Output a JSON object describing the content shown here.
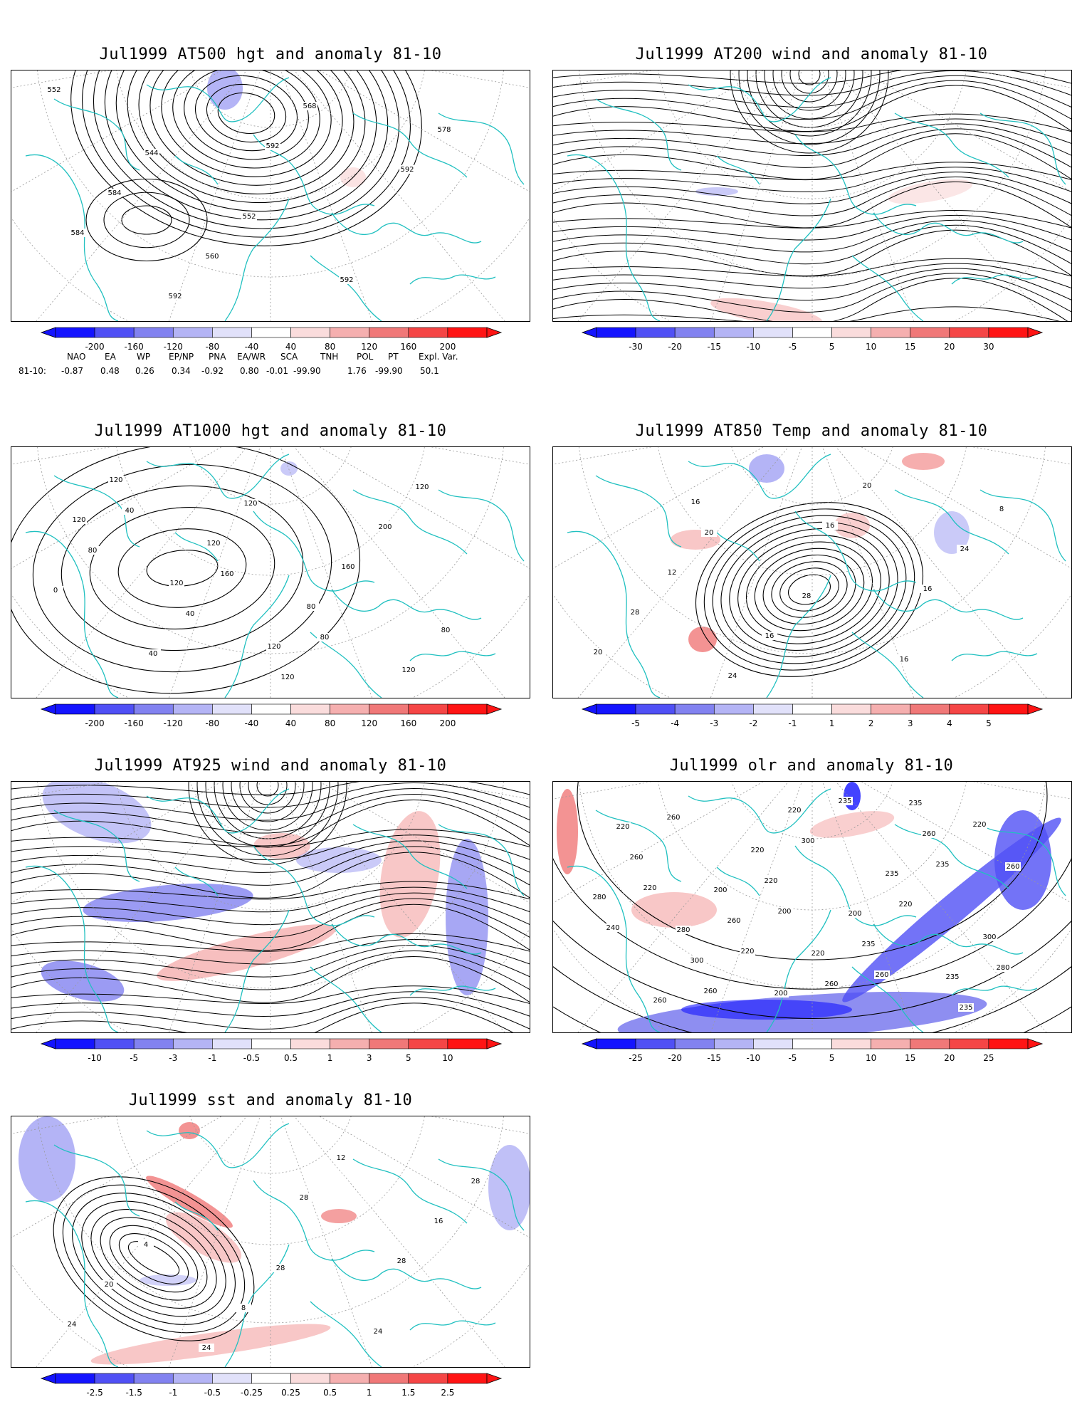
{
  "panels": [
    {
      "id": "p500",
      "title": "Jul1999 AT500 hgt and anomaly 81-10",
      "kind": "hgt500",
      "ticks": [
        "-200",
        "-160",
        "-120",
        "-80",
        "-40",
        "40",
        "80",
        "120",
        "160",
        "200"
      ],
      "labels": [
        "552",
        "544",
        "552",
        "592",
        "578",
        "584",
        "560",
        "568",
        "592",
        "584",
        "592",
        "592"
      ]
    },
    {
      "id": "p200",
      "title": "Jul1999 AT200 wind and anomaly 81-10",
      "kind": "wind",
      "ticks": [
        "-30",
        "-20",
        "-15",
        "-10",
        "-5",
        "5",
        "10",
        "15",
        "20",
        "30"
      ],
      "labels": []
    },
    {
      "id": "p1000",
      "title": "Jul1999 AT1000 hgt and anomaly 81-10",
      "kind": "hgt1000",
      "ticks": [
        "-200",
        "-160",
        "-120",
        "-80",
        "-40",
        "40",
        "80",
        "120",
        "160",
        "200"
      ],
      "labels": [
        "40",
        "160",
        "80",
        "120",
        "80",
        "40",
        "120",
        "200",
        "0",
        "40",
        "120",
        "160",
        "80",
        "120",
        "120",
        "80",
        "120",
        "120",
        "120",
        "120"
      ]
    },
    {
      "id": "p850",
      "title": "Jul1999 AT850 Temp and anomaly 81-10",
      "kind": "t850",
      "ticks": [
        "-5",
        "-4",
        "-3",
        "-2",
        "-1",
        "1",
        "2",
        "3",
        "4",
        "5"
      ],
      "labels": [
        "20",
        "28",
        "16",
        "8",
        "12",
        "16",
        "20",
        "24",
        "28",
        "24",
        "16",
        "16",
        "20",
        "16"
      ]
    },
    {
      "id": "p925",
      "title": "Jul1999 AT925 wind and anomaly 81-10",
      "kind": "wind925",
      "ticks": [
        "-10",
        "-5",
        "-3",
        "-1",
        "-0.5",
        "0.5",
        "1",
        "3",
        "5",
        "10"
      ],
      "labels": []
    },
    {
      "id": "polr",
      "title": "Jul1999 olr and anomaly 81-10",
      "kind": "olr",
      "ticks": [
        "-25",
        "-20",
        "-15",
        "-10",
        "-5",
        "5",
        "10",
        "15",
        "20",
        "25"
      ],
      "labels": [
        "200",
        "260",
        "220",
        "220",
        "220",
        "235",
        "235",
        "240",
        "260",
        "300",
        "220",
        "280",
        "260",
        "220",
        "235",
        "235",
        "260",
        "260",
        "260",
        "260",
        "280",
        "300",
        "220",
        "235",
        "300",
        "260",
        "220",
        "200",
        "235",
        "220",
        "200",
        "220",
        "235",
        "260",
        "280",
        "200"
      ]
    },
    {
      "id": "psst",
      "title": "Jul1999 sst and anomaly 81-10",
      "kind": "sst",
      "ticks": [
        "-2.5",
        "-1.5",
        "-1",
        "-0.5",
        "-0.25",
        "0.25",
        "0.5",
        "1",
        "1.5",
        "2.5"
      ],
      "labels": [
        "28",
        "24",
        "28",
        "4",
        "8",
        "12",
        "16",
        "20",
        "24",
        "28",
        "28",
        "24"
      ]
    }
  ],
  "teleconnections": {
    "headers": [
      "NAO",
      "EA",
      "WP",
      "EP/NP",
      "PNA",
      "EA/WR",
      "SCA",
      "TNH",
      "POL",
      "PT",
      "Expl. Var."
    ],
    "row_label": "81-10:",
    "values": [
      "-0.87",
      "0.48",
      "0.26",
      "0.34",
      "-0.92",
      "0.80",
      "-0.01",
      "-99.90",
      "1.76",
      "-99.90",
      "50.1"
    ]
  },
  "colors": {
    "coast": "#20c0c0",
    "contour": "#000000",
    "grid": "#9a9a9a",
    "scale": [
      "#1414ff",
      "#5050f5",
      "#8282f0",
      "#b4b4f5",
      "#e1e1fa",
      "#ffffff",
      "#fadcdc",
      "#f5afaf",
      "#f07878",
      "#f54646",
      "#ff1414"
    ]
  }
}
